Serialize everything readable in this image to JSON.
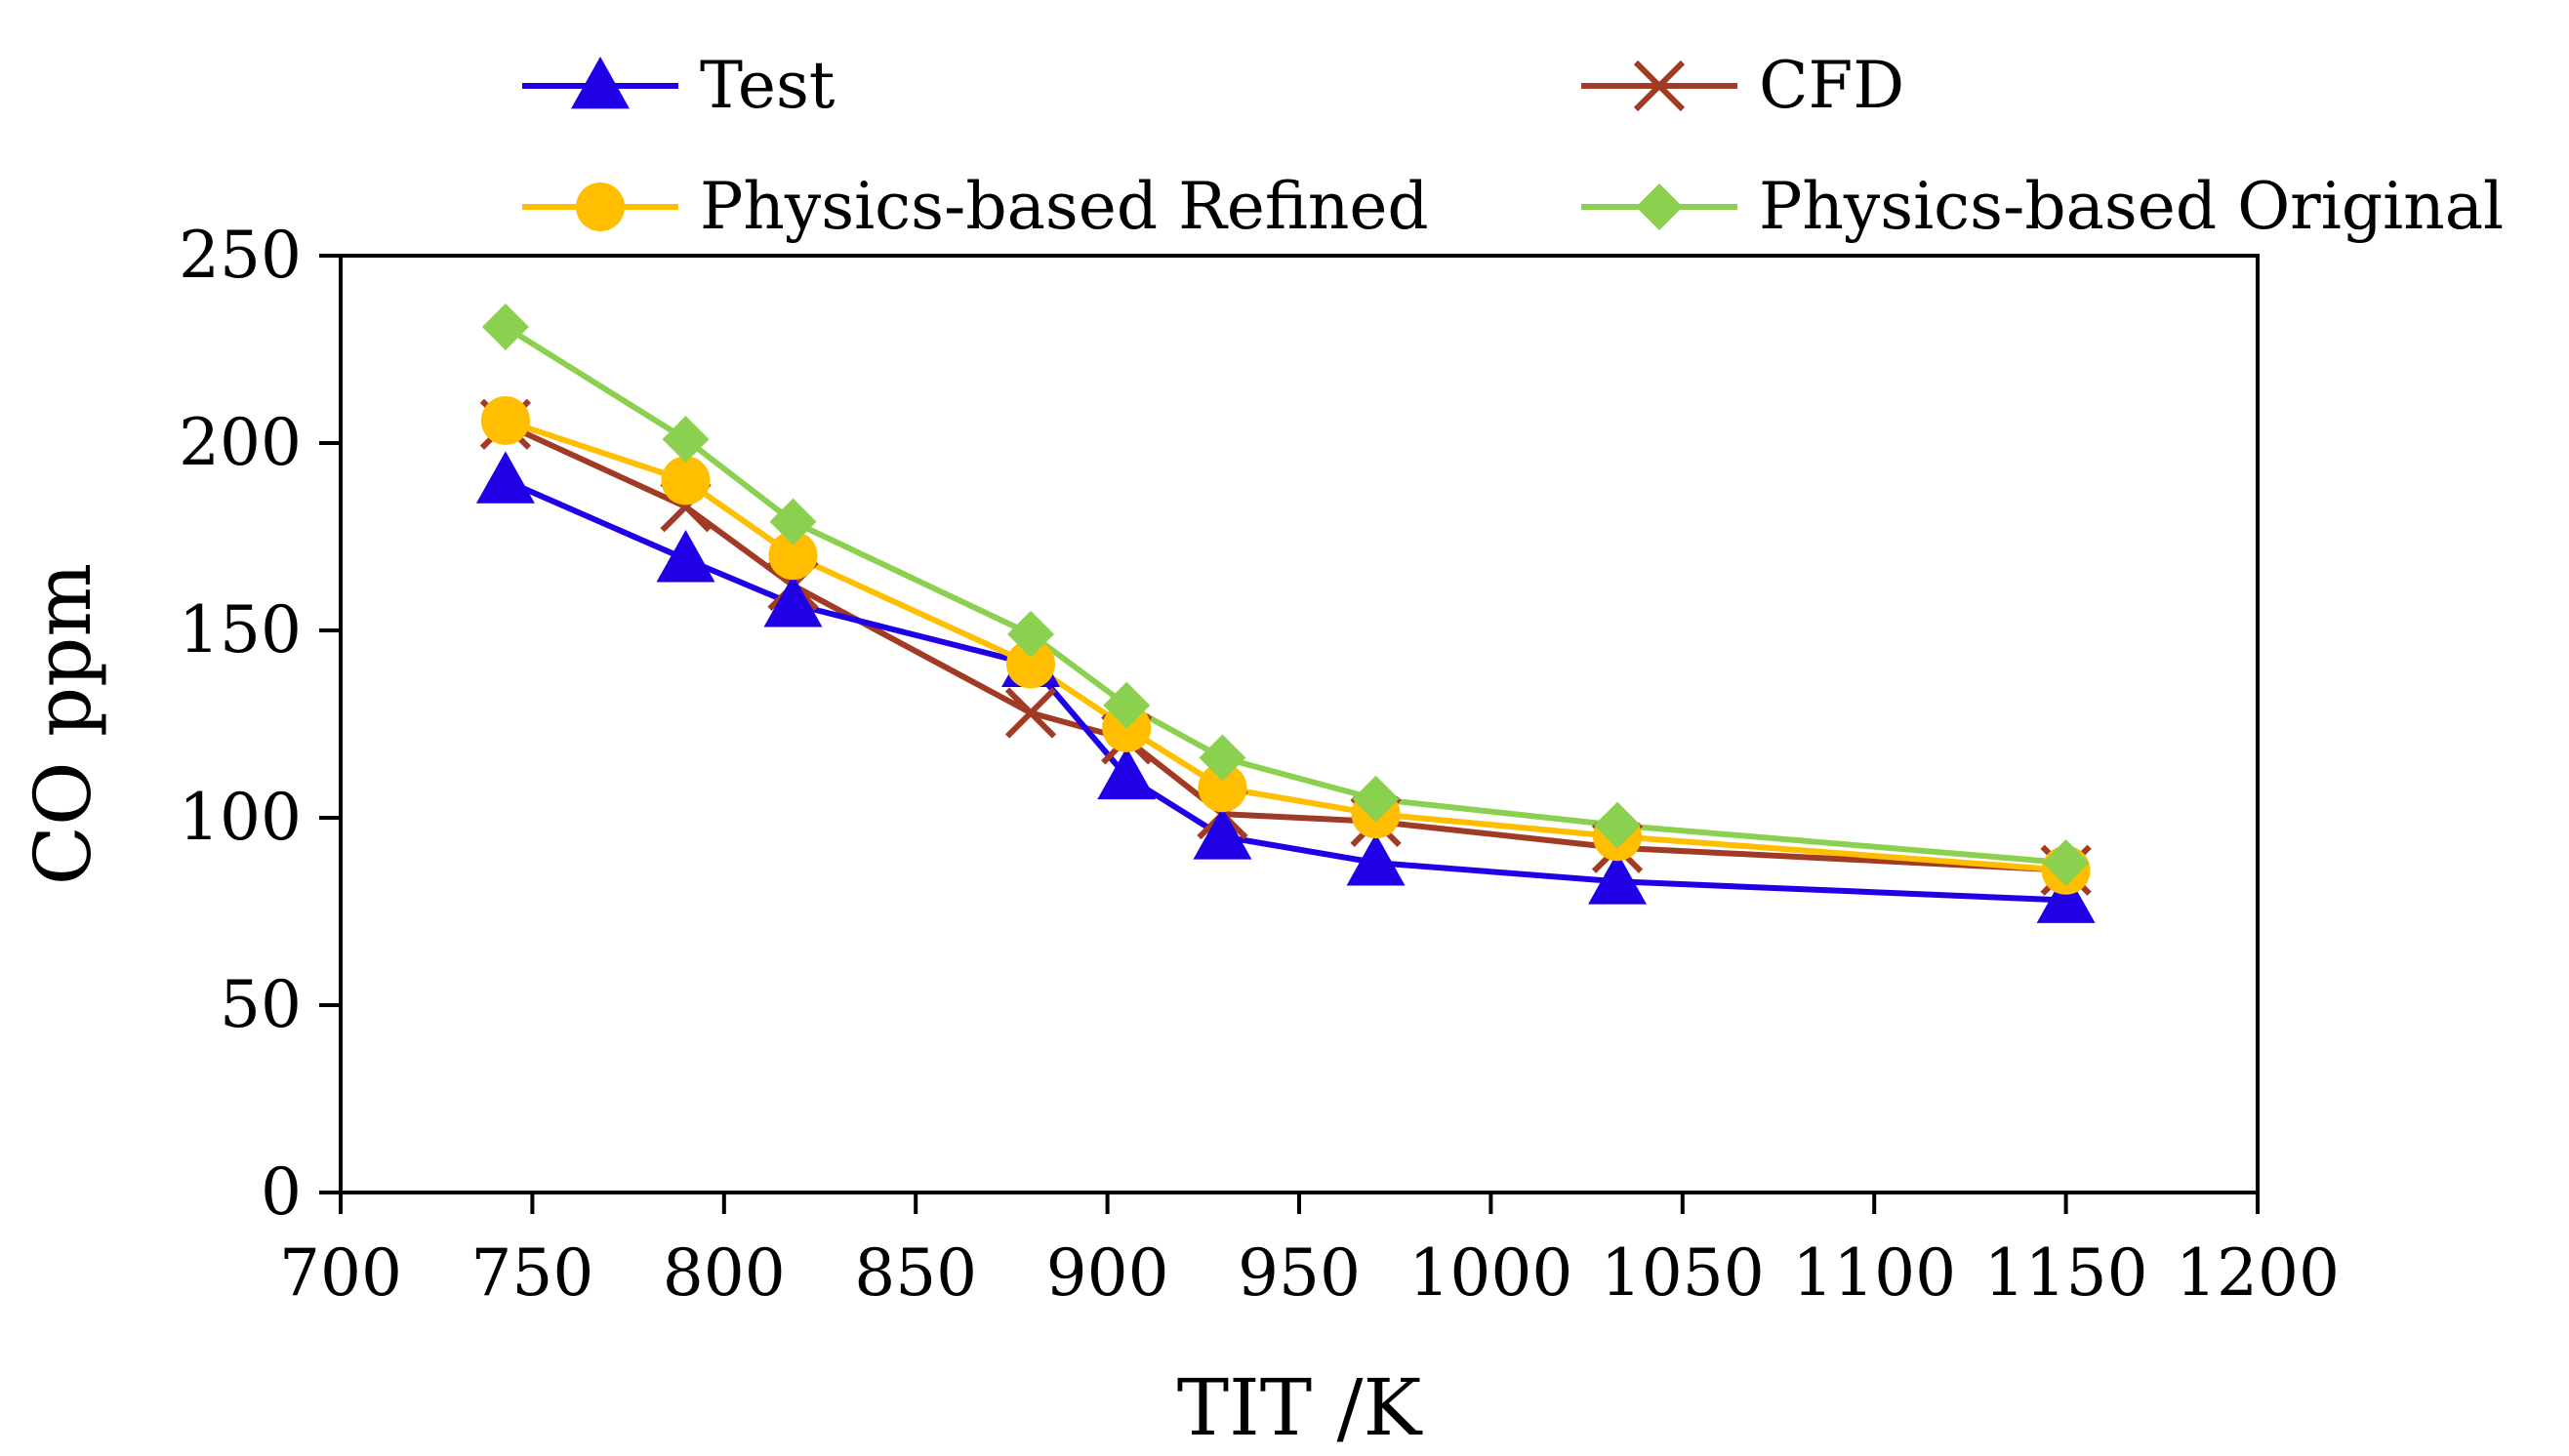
{
  "chart_data": {
    "type": "line",
    "title": "",
    "xlabel": "TIT /K",
    "ylabel": "CO ppm",
    "xlim": [
      700,
      1200
    ],
    "ylim": [
      0,
      250
    ],
    "x_ticks": [
      700,
      750,
      800,
      850,
      900,
      950,
      1000,
      1050,
      1100,
      1150,
      1200
    ],
    "y_ticks": [
      0,
      50,
      100,
      150,
      200,
      250
    ],
    "legend_position": "top",
    "series": [
      {
        "name": "Test",
        "color": "#1f00e6",
        "marker": "triangle",
        "x": [
          743,
          790,
          818,
          880,
          905,
          930,
          970,
          1033,
          1150
        ],
        "y": [
          190,
          169,
          157,
          141,
          111,
          95,
          88,
          83,
          78
        ]
      },
      {
        "name": "CFD",
        "color": "#a23b25",
        "marker": "x",
        "x": [
          743,
          790,
          818,
          880,
          905,
          930,
          970,
          1033,
          1150
        ],
        "y": [
          205,
          183,
          162,
          128,
          121,
          101,
          99,
          92,
          86
        ]
      },
      {
        "name": "Physics-based Refined",
        "color": "#ffbe00",
        "marker": "circle",
        "x": [
          743,
          790,
          818,
          880,
          905,
          930,
          970,
          1033,
          1150
        ],
        "y": [
          206,
          190,
          170,
          141,
          124,
          108,
          101,
          95,
          86
        ]
      },
      {
        "name": "Physics-based Original",
        "color": "#8bd14f",
        "marker": "diamond",
        "x": [
          743,
          790,
          818,
          880,
          905,
          930,
          970,
          1033,
          1150
        ],
        "y": [
          231,
          201,
          179,
          149,
          130,
          116,
          105,
          98,
          88
        ]
      }
    ]
  }
}
